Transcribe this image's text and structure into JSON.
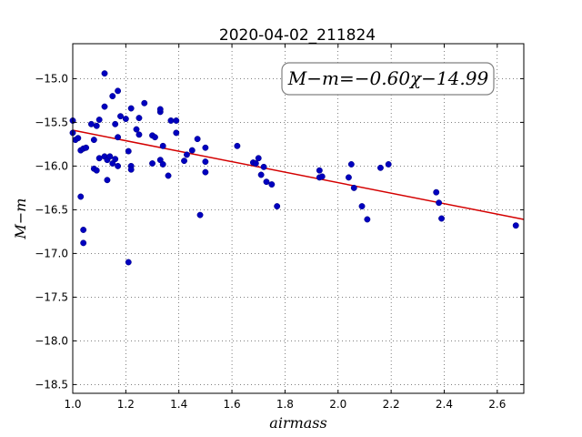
{
  "chart_data": {
    "type": "scatter",
    "title": "2020-04-02_211824",
    "xlabel": "airmass",
    "ylabel": "M−m",
    "xlim": [
      1.0,
      2.7
    ],
    "ylim": [
      -18.6,
      -14.6
    ],
    "x_ticks": [
      1.0,
      1.2,
      1.4,
      1.6,
      1.8,
      2.0,
      2.2,
      2.4,
      2.6
    ],
    "x_tick_labels": [
      "1.0",
      "1.2",
      "1.4",
      "1.6",
      "1.8",
      "2.0",
      "2.2",
      "2.4",
      "2.6"
    ],
    "y_ticks": [
      -15.0,
      -15.5,
      -16.0,
      -16.5,
      -17.0,
      -17.5,
      -18.0,
      -18.5
    ],
    "y_tick_labels": [
      "−15.0",
      "−15.5",
      "−16.0",
      "−16.5",
      "−17.0",
      "−17.5",
      "−18.0",
      "−18.5"
    ],
    "grid": true,
    "annotation": "M−m=−0.60χ−14.99",
    "fit": {
      "slope": -0.6,
      "intercept": -14.99
    },
    "point_color": "#0000bf",
    "line_color": "#d40000",
    "points": [
      [
        1.0,
        -15.48
      ],
      [
        1.0,
        -15.62
      ],
      [
        1.01,
        -15.7
      ],
      [
        1.02,
        -15.68
      ],
      [
        1.03,
        -15.82
      ],
      [
        1.04,
        -15.8
      ],
      [
        1.05,
        -15.79
      ],
      [
        1.03,
        -16.35
      ],
      [
        1.04,
        -16.73
      ],
      [
        1.04,
        -16.88
      ],
      [
        1.07,
        -15.52
      ],
      [
        1.08,
        -15.7
      ],
      [
        1.08,
        -16.03
      ],
      [
        1.09,
        -16.05
      ],
      [
        1.09,
        -15.54
      ],
      [
        1.1,
        -15.47
      ],
      [
        1.1,
        -15.91
      ],
      [
        1.12,
        -14.94
      ],
      [
        1.12,
        -15.32
      ],
      [
        1.12,
        -15.89
      ],
      [
        1.13,
        -15.93
      ],
      [
        1.13,
        -16.16
      ],
      [
        1.14,
        -15.89
      ],
      [
        1.15,
        -15.97
      ],
      [
        1.15,
        -15.2
      ],
      [
        1.16,
        -15.52
      ],
      [
        1.16,
        -15.92
      ],
      [
        1.17,
        -15.14
      ],
      [
        1.17,
        -15.67
      ],
      [
        1.17,
        -16.0
      ],
      [
        1.18,
        -15.43
      ],
      [
        1.2,
        -15.46
      ],
      [
        1.21,
        -15.83
      ],
      [
        1.22,
        -15.34
      ],
      [
        1.22,
        -16.0
      ],
      [
        1.22,
        -16.04
      ],
      [
        1.24,
        -15.58
      ],
      [
        1.25,
        -15.45
      ],
      [
        1.25,
        -15.64
      ],
      [
        1.27,
        -15.28
      ],
      [
        1.21,
        -17.1
      ],
      [
        1.3,
        -15.97
      ],
      [
        1.3,
        -15.65
      ],
      [
        1.31,
        -15.67
      ],
      [
        1.33,
        -15.93
      ],
      [
        1.33,
        -15.38
      ],
      [
        1.33,
        -15.35
      ],
      [
        1.34,
        -15.98
      ],
      [
        1.34,
        -15.77
      ],
      [
        1.36,
        -16.11
      ],
      [
        1.37,
        -15.48
      ],
      [
        1.39,
        -15.48
      ],
      [
        1.39,
        -15.62
      ],
      [
        1.42,
        -15.94
      ],
      [
        1.43,
        -15.87
      ],
      [
        1.45,
        -15.82
      ],
      [
        1.47,
        -15.69
      ],
      [
        1.48,
        -16.56
      ],
      [
        1.5,
        -15.79
      ],
      [
        1.5,
        -15.95
      ],
      [
        1.5,
        -16.07
      ],
      [
        1.62,
        -15.77
      ],
      [
        1.68,
        -15.96
      ],
      [
        1.69,
        -15.97
      ],
      [
        1.7,
        -15.91
      ],
      [
        1.71,
        -16.1
      ],
      [
        1.72,
        -16.01
      ],
      [
        1.73,
        -16.18
      ],
      [
        1.75,
        -16.21
      ],
      [
        1.77,
        -16.46
      ],
      [
        1.93,
        -16.05
      ],
      [
        1.93,
        -16.13
      ],
      [
        1.94,
        -16.12
      ],
      [
        2.04,
        -16.13
      ],
      [
        2.05,
        -15.98
      ],
      [
        2.06,
        -16.25
      ],
      [
        2.09,
        -16.46
      ],
      [
        2.11,
        -16.61
      ],
      [
        2.16,
        -16.02
      ],
      [
        2.19,
        -15.98
      ],
      [
        2.37,
        -16.3
      ],
      [
        2.38,
        -16.42
      ],
      [
        2.39,
        -16.6
      ],
      [
        2.67,
        -16.68
      ]
    ]
  }
}
